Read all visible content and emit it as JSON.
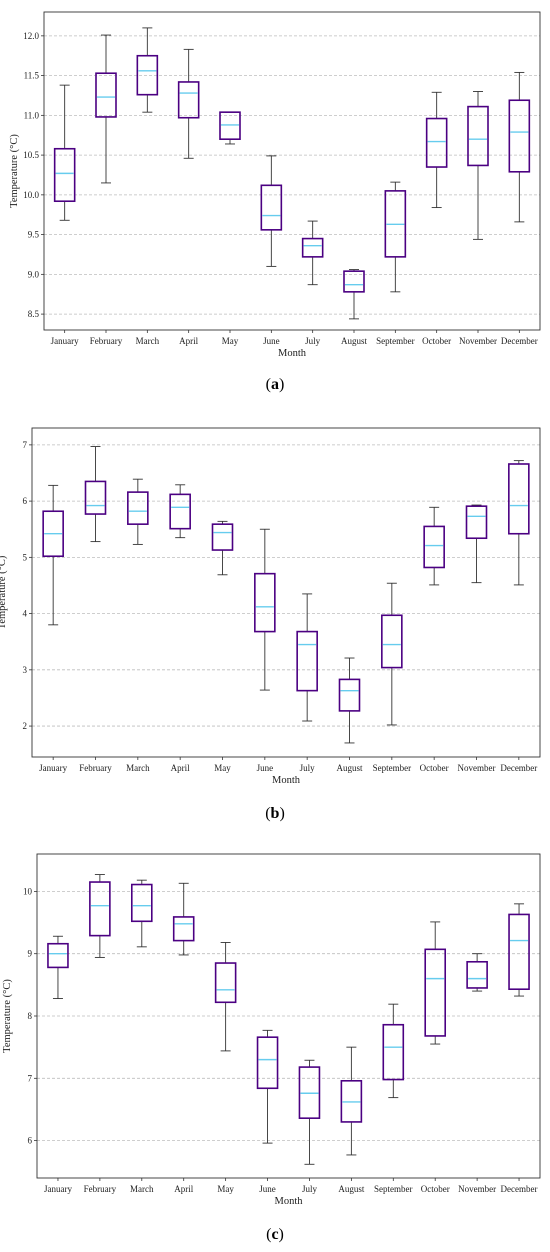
{
  "colors": {
    "box": "#4b0082",
    "median": "#66ccee",
    "whisker": "#333333",
    "grid": "#bdbdbd",
    "frame": "#333333"
  },
  "chart_data": [
    {
      "type": "box",
      "panel_label": "a",
      "xlabel": "Month",
      "ylabel": "Temperature (°C)",
      "ylim": [
        8.3,
        12.3
      ],
      "yticks": [
        8.5,
        9.0,
        9.5,
        10.0,
        10.5,
        11.0,
        11.5,
        12.0
      ],
      "ytick_labels": [
        "8.5",
        "9.0",
        "9.5",
        "10.0",
        "10.5",
        "11.0",
        "11.5",
        "12.0"
      ],
      "grid": true,
      "categories": [
        "January",
        "February",
        "March",
        "April",
        "May",
        "June",
        "July",
        "August",
        "September",
        "October",
        "November",
        "December"
      ],
      "boxes": [
        {
          "min": 9.68,
          "q1": 9.92,
          "median": 10.27,
          "q3": 10.58,
          "max": 11.38
        },
        {
          "min": 10.15,
          "q1": 10.98,
          "median": 11.23,
          "q3": 11.53,
          "max": 12.01
        },
        {
          "min": 11.04,
          "q1": 11.26,
          "median": 11.56,
          "q3": 11.75,
          "max": 12.1
        },
        {
          "min": 10.46,
          "q1": 10.97,
          "median": 11.28,
          "q3": 11.42,
          "max": 11.83
        },
        {
          "min": 10.64,
          "q1": 10.7,
          "median": 10.88,
          "q3": 11.04,
          "max": 11.04
        },
        {
          "min": 9.1,
          "q1": 9.56,
          "median": 9.74,
          "q3": 10.12,
          "max": 10.49
        },
        {
          "min": 8.87,
          "q1": 9.22,
          "median": 9.36,
          "q3": 9.45,
          "max": 9.67
        },
        {
          "min": 8.44,
          "q1": 8.78,
          "median": 8.87,
          "q3": 9.04,
          "max": 9.06
        },
        {
          "min": 8.78,
          "q1": 9.22,
          "median": 9.63,
          "q3": 10.05,
          "max": 10.16
        },
        {
          "min": 9.84,
          "q1": 10.35,
          "median": 10.67,
          "q3": 10.96,
          "max": 11.29
        },
        {
          "min": 9.44,
          "q1": 10.37,
          "median": 10.7,
          "q3": 11.11,
          "max": 11.3
        },
        {
          "min": 9.66,
          "q1": 10.29,
          "median": 10.79,
          "q3": 11.19,
          "max": 11.54
        }
      ]
    },
    {
      "type": "box",
      "panel_label": "b",
      "xlabel": "Month",
      "ylabel": "Temperature (°C)",
      "ylim": [
        1.45,
        7.3
      ],
      "yticks": [
        2,
        3,
        4,
        5,
        6,
        7
      ],
      "ytick_labels": [
        "2",
        "3",
        "4",
        "5",
        "6",
        "7"
      ],
      "grid": true,
      "categories": [
        "January",
        "February",
        "March",
        "April",
        "May",
        "June",
        "July",
        "August",
        "September",
        "October",
        "November",
        "December"
      ],
      "boxes": [
        {
          "min": 3.8,
          "q1": 5.02,
          "median": 5.42,
          "q3": 5.82,
          "max": 6.28
        },
        {
          "min": 5.28,
          "q1": 5.77,
          "median": 5.92,
          "q3": 6.35,
          "max": 6.97
        },
        {
          "min": 5.23,
          "q1": 5.59,
          "median": 5.82,
          "q3": 6.16,
          "max": 6.39
        },
        {
          "min": 5.35,
          "q1": 5.51,
          "median": 5.89,
          "q3": 6.12,
          "max": 6.29
        },
        {
          "min": 4.69,
          "q1": 5.13,
          "median": 5.44,
          "q3": 5.59,
          "max": 5.64
        },
        {
          "min": 2.64,
          "q1": 3.68,
          "median": 4.12,
          "q3": 4.71,
          "max": 5.5
        },
        {
          "min": 2.09,
          "q1": 2.63,
          "median": 3.45,
          "q3": 3.68,
          "max": 4.35
        },
        {
          "min": 1.7,
          "q1": 2.27,
          "median": 2.63,
          "q3": 2.83,
          "max": 3.21
        },
        {
          "min": 2.02,
          "q1": 3.04,
          "median": 3.45,
          "q3": 3.97,
          "max": 4.54
        },
        {
          "min": 4.51,
          "q1": 4.82,
          "median": 5.21,
          "q3": 5.55,
          "max": 5.89
        },
        {
          "min": 4.55,
          "q1": 5.34,
          "median": 5.73,
          "q3": 5.91,
          "max": 5.93
        },
        {
          "min": 4.51,
          "q1": 5.42,
          "median": 5.92,
          "q3": 6.66,
          "max": 6.72
        }
      ]
    },
    {
      "type": "box",
      "panel_label": "c",
      "xlabel": "Month",
      "ylabel": "Temperature (°C)",
      "ylim": [
        5.4,
        10.6
      ],
      "yticks": [
        6,
        7,
        8,
        9,
        10
      ],
      "ytick_labels": [
        "6",
        "7",
        "8",
        "9",
        "10"
      ],
      "grid": true,
      "categories": [
        "January",
        "February",
        "March",
        "April",
        "May",
        "June",
        "July",
        "August",
        "September",
        "October",
        "November",
        "December"
      ],
      "boxes": [
        {
          "min": 8.28,
          "q1": 8.78,
          "median": 9.0,
          "q3": 9.16,
          "max": 9.28
        },
        {
          "min": 8.94,
          "q1": 9.29,
          "median": 9.77,
          "q3": 10.15,
          "max": 10.27
        },
        {
          "min": 9.11,
          "q1": 9.52,
          "median": 9.77,
          "q3": 10.11,
          "max": 10.18
        },
        {
          "min": 8.98,
          "q1": 9.21,
          "median": 9.48,
          "q3": 9.59,
          "max": 10.13
        },
        {
          "min": 7.44,
          "q1": 8.22,
          "median": 8.42,
          "q3": 8.85,
          "max": 9.18
        },
        {
          "min": 5.96,
          "q1": 6.84,
          "median": 7.3,
          "q3": 7.66,
          "max": 7.77
        },
        {
          "min": 5.62,
          "q1": 6.36,
          "median": 6.76,
          "q3": 7.18,
          "max": 7.29
        },
        {
          "min": 5.77,
          "q1": 6.3,
          "median": 6.62,
          "q3": 6.96,
          "max": 7.5
        },
        {
          "min": 6.69,
          "q1": 6.98,
          "median": 7.5,
          "q3": 7.86,
          "max": 8.19
        },
        {
          "min": 7.55,
          "q1": 7.68,
          "median": 8.6,
          "q3": 9.07,
          "max": 9.51
        },
        {
          "min": 8.4,
          "q1": 8.45,
          "median": 8.6,
          "q3": 8.87,
          "max": 9.0
        },
        {
          "min": 8.32,
          "q1": 8.43,
          "median": 9.21,
          "q3": 9.63,
          "max": 9.8
        }
      ]
    }
  ]
}
